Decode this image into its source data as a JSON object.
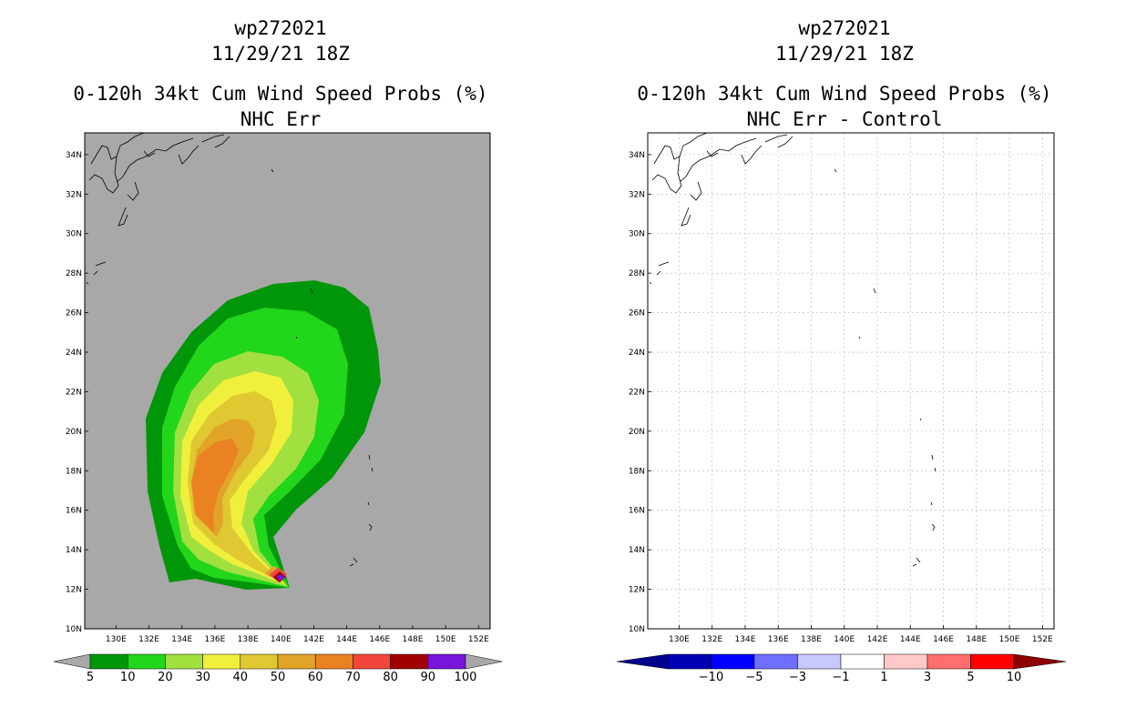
{
  "chart_data": [
    {
      "type": "heatmap",
      "storm_id": "wp272021",
      "date": "11/29/21 18Z",
      "title": "0-120h 34kt Cum Wind Speed Probs (%)",
      "subtitle": "NHC Err",
      "x_ticks": [
        "130E",
        "132E",
        "134E",
        "136E",
        "138E",
        "140E",
        "142E",
        "144E",
        "146E",
        "148E",
        "150E",
        "152E"
      ],
      "y_ticks": [
        "10N",
        "12N",
        "14N",
        "16N",
        "18N",
        "20N",
        "22N",
        "24N",
        "26N",
        "28N",
        "30N",
        "32N",
        "34N"
      ],
      "xlim": [
        128.1,
        152.7
      ],
      "ylim": [
        10,
        35.1
      ],
      "background": "#a8a8a8",
      "colorbar": {
        "labels": [
          "5",
          "10",
          "20",
          "30",
          "40",
          "50",
          "60",
          "70",
          "80",
          "90",
          "100"
        ],
        "colors": [
          "#00960a",
          "#22d61c",
          "#a2e040",
          "#f0f03c",
          "#e0c832",
          "#e2a428",
          "#ea8222",
          "#f2463c",
          "#a00000",
          "#7814dc"
        ],
        "end_color": "#a8a8a8"
      },
      "contour_levels_percent": [
        5,
        10,
        20,
        30,
        40,
        50,
        60,
        70,
        80
      ]
    },
    {
      "type": "heatmap",
      "storm_id": "wp272021",
      "date": "11/29/21 18Z",
      "title": "0-120h 34kt Cum Wind Speed Probs (%)",
      "subtitle": "NHC Err - Control",
      "x_ticks": [
        "130E",
        "132E",
        "134E",
        "136E",
        "138E",
        "140E",
        "142E",
        "144E",
        "146E",
        "148E",
        "150E",
        "152E"
      ],
      "y_ticks": [
        "10N",
        "12N",
        "14N",
        "16N",
        "18N",
        "20N",
        "22N",
        "24N",
        "26N",
        "28N",
        "30N",
        "32N",
        "34N"
      ],
      "xlim": [
        128.1,
        152.7
      ],
      "ylim": [
        10,
        35.1
      ],
      "background": "#ffffff",
      "colorbar": {
        "labels": [
          "-10",
          "-5",
          "-3",
          "-1",
          "1",
          "3",
          "5",
          "10"
        ],
        "colors": [
          "#0000b4",
          "#0000ff",
          "#6e6eff",
          "#c8c8ff",
          "#ffffff",
          "#ffc8c8",
          "#ff6e6e",
          "#ff0000",
          "#b40000"
        ],
        "end_colors": [
          "#00008c",
          "#8c0000"
        ]
      }
    }
  ]
}
